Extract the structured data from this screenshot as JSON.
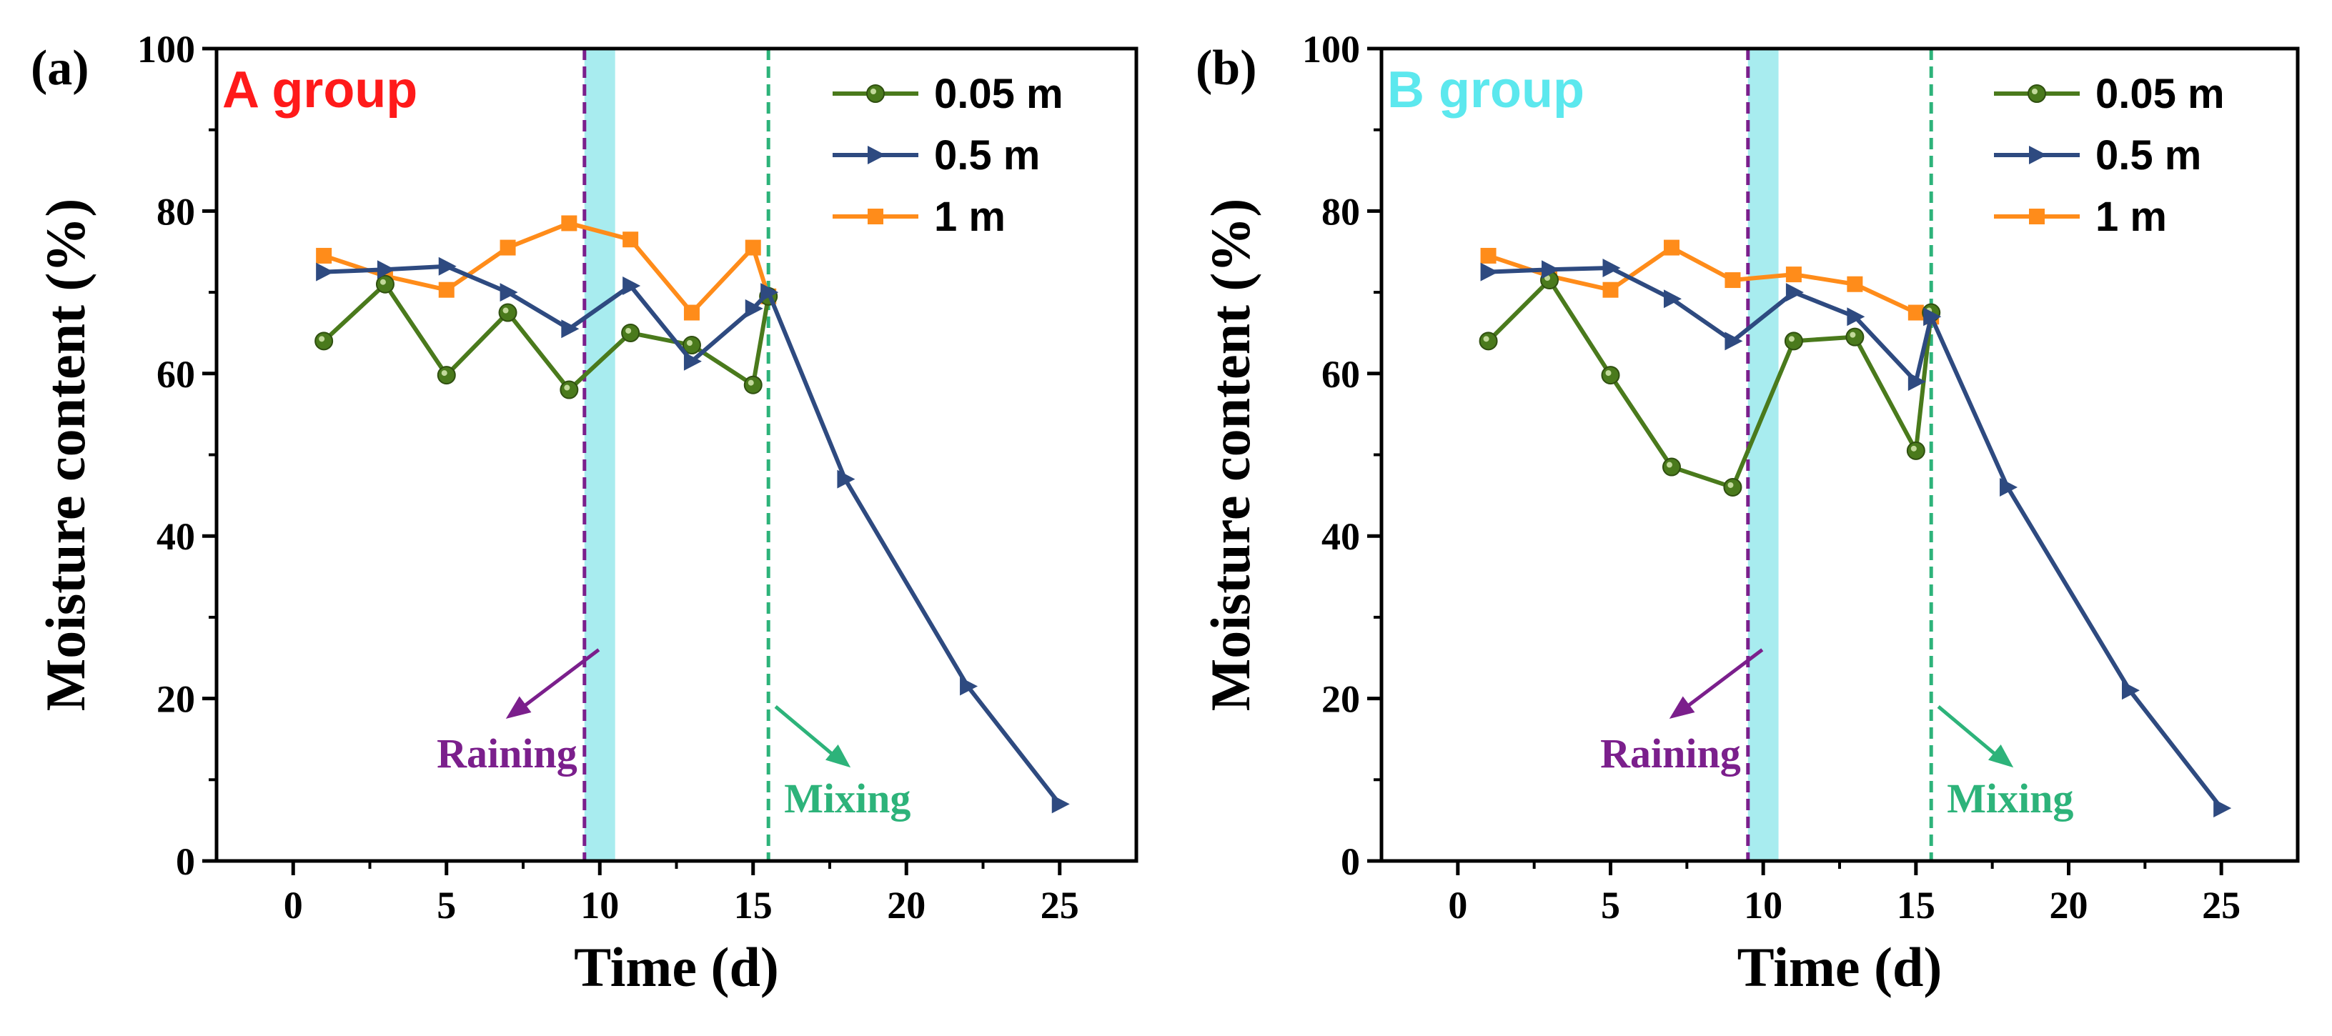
{
  "chart_data": [
    {
      "type": "line",
      "panel_label": "(a)",
      "group_label": "A group",
      "group_color": "#ff1a1a",
      "xlabel": "Time (d)",
      "ylabel": "Moisture content (%)",
      "xlim": [
        -2.5,
        27.5
      ],
      "ylim": [
        0,
        100
      ],
      "xticks": [
        0,
        5,
        10,
        15,
        20,
        25
      ],
      "yticks": [
        0,
        20,
        40,
        60,
        80,
        100
      ],
      "series": [
        {
          "name": "0.05 m",
          "color": "#4a7a1c",
          "marker": "circle",
          "x": [
            1,
            3,
            5,
            7,
            9,
            11,
            13,
            15,
            15.5
          ],
          "y": [
            64,
            71,
            59.8,
            67.5,
            58,
            65,
            63.5,
            58.6,
            69.5
          ]
        },
        {
          "name": "0.5 m",
          "color": "#2e4a80",
          "marker": "triangle-right",
          "x": [
            1,
            3,
            5,
            7,
            9,
            11,
            13,
            15,
            15.5,
            18,
            22,
            25
          ],
          "y": [
            72.5,
            72.8,
            73.2,
            70,
            65.5,
            70.8,
            61.5,
            68,
            70,
            47,
            21.5,
            7
          ]
        },
        {
          "name": "1 m",
          "color": "#ff8c1a",
          "marker": "square",
          "x": [
            1,
            3,
            5,
            7,
            9,
            11,
            13,
            15,
            15.5
          ],
          "y": [
            74.5,
            72,
            70.3,
            75.5,
            78.5,
            76.5,
            67.5,
            75.5,
            69.5
          ]
        }
      ],
      "annotations": {
        "rain_line_x": 9.5,
        "rain_band": [
          9.5,
          10.5
        ],
        "mix_line_x": 15.5,
        "raining_label": "Raining",
        "mixing_label": "Mixing",
        "rain_color": "#7b1f8c",
        "mix_color": "#2db37a",
        "band_color": "#a8ecef"
      }
    },
    {
      "type": "line",
      "panel_label": "(b)",
      "group_label": "B group",
      "group_color": "#5ce8ee",
      "xlabel": "Time (d)",
      "ylabel": "Moisture content (%)",
      "xlim": [
        -2.5,
        27.5
      ],
      "ylim": [
        0,
        100
      ],
      "xticks": [
        0,
        5,
        10,
        15,
        20,
        25
      ],
      "yticks": [
        0,
        20,
        40,
        60,
        80,
        100
      ],
      "series": [
        {
          "name": "0.05 m",
          "color": "#4a7a1c",
          "marker": "circle",
          "x": [
            1,
            3,
            5,
            7,
            9,
            11,
            13,
            15,
            15.5
          ],
          "y": [
            64,
            71.5,
            59.8,
            48.5,
            46,
            64,
            64.5,
            50.5,
            67.5
          ]
        },
        {
          "name": "0.5 m",
          "color": "#2e4a80",
          "marker": "triangle-right",
          "x": [
            1,
            3,
            5,
            7,
            9,
            11,
            13,
            15,
            15.5,
            18,
            22,
            25
          ],
          "y": [
            72.5,
            72.8,
            73,
            69.2,
            64,
            70,
            67,
            59,
            67,
            46,
            21,
            6.5
          ]
        },
        {
          "name": "1 m",
          "color": "#ff8c1a",
          "marker": "square",
          "x": [
            1,
            3,
            5,
            7,
            9,
            11,
            13,
            15,
            15.5
          ],
          "y": [
            74.5,
            72,
            70.3,
            75.5,
            71.5,
            72.2,
            71,
            67.5,
            67
          ]
        }
      ],
      "annotations": {
        "rain_line_x": 9.5,
        "rain_band": [
          9.5,
          10.5
        ],
        "mix_line_x": 15.5,
        "raining_label": "Raining",
        "mixing_label": "Mixing",
        "rain_color": "#7b1f8c",
        "mix_color": "#2db37a",
        "band_color": "#a8ecef"
      }
    }
  ]
}
